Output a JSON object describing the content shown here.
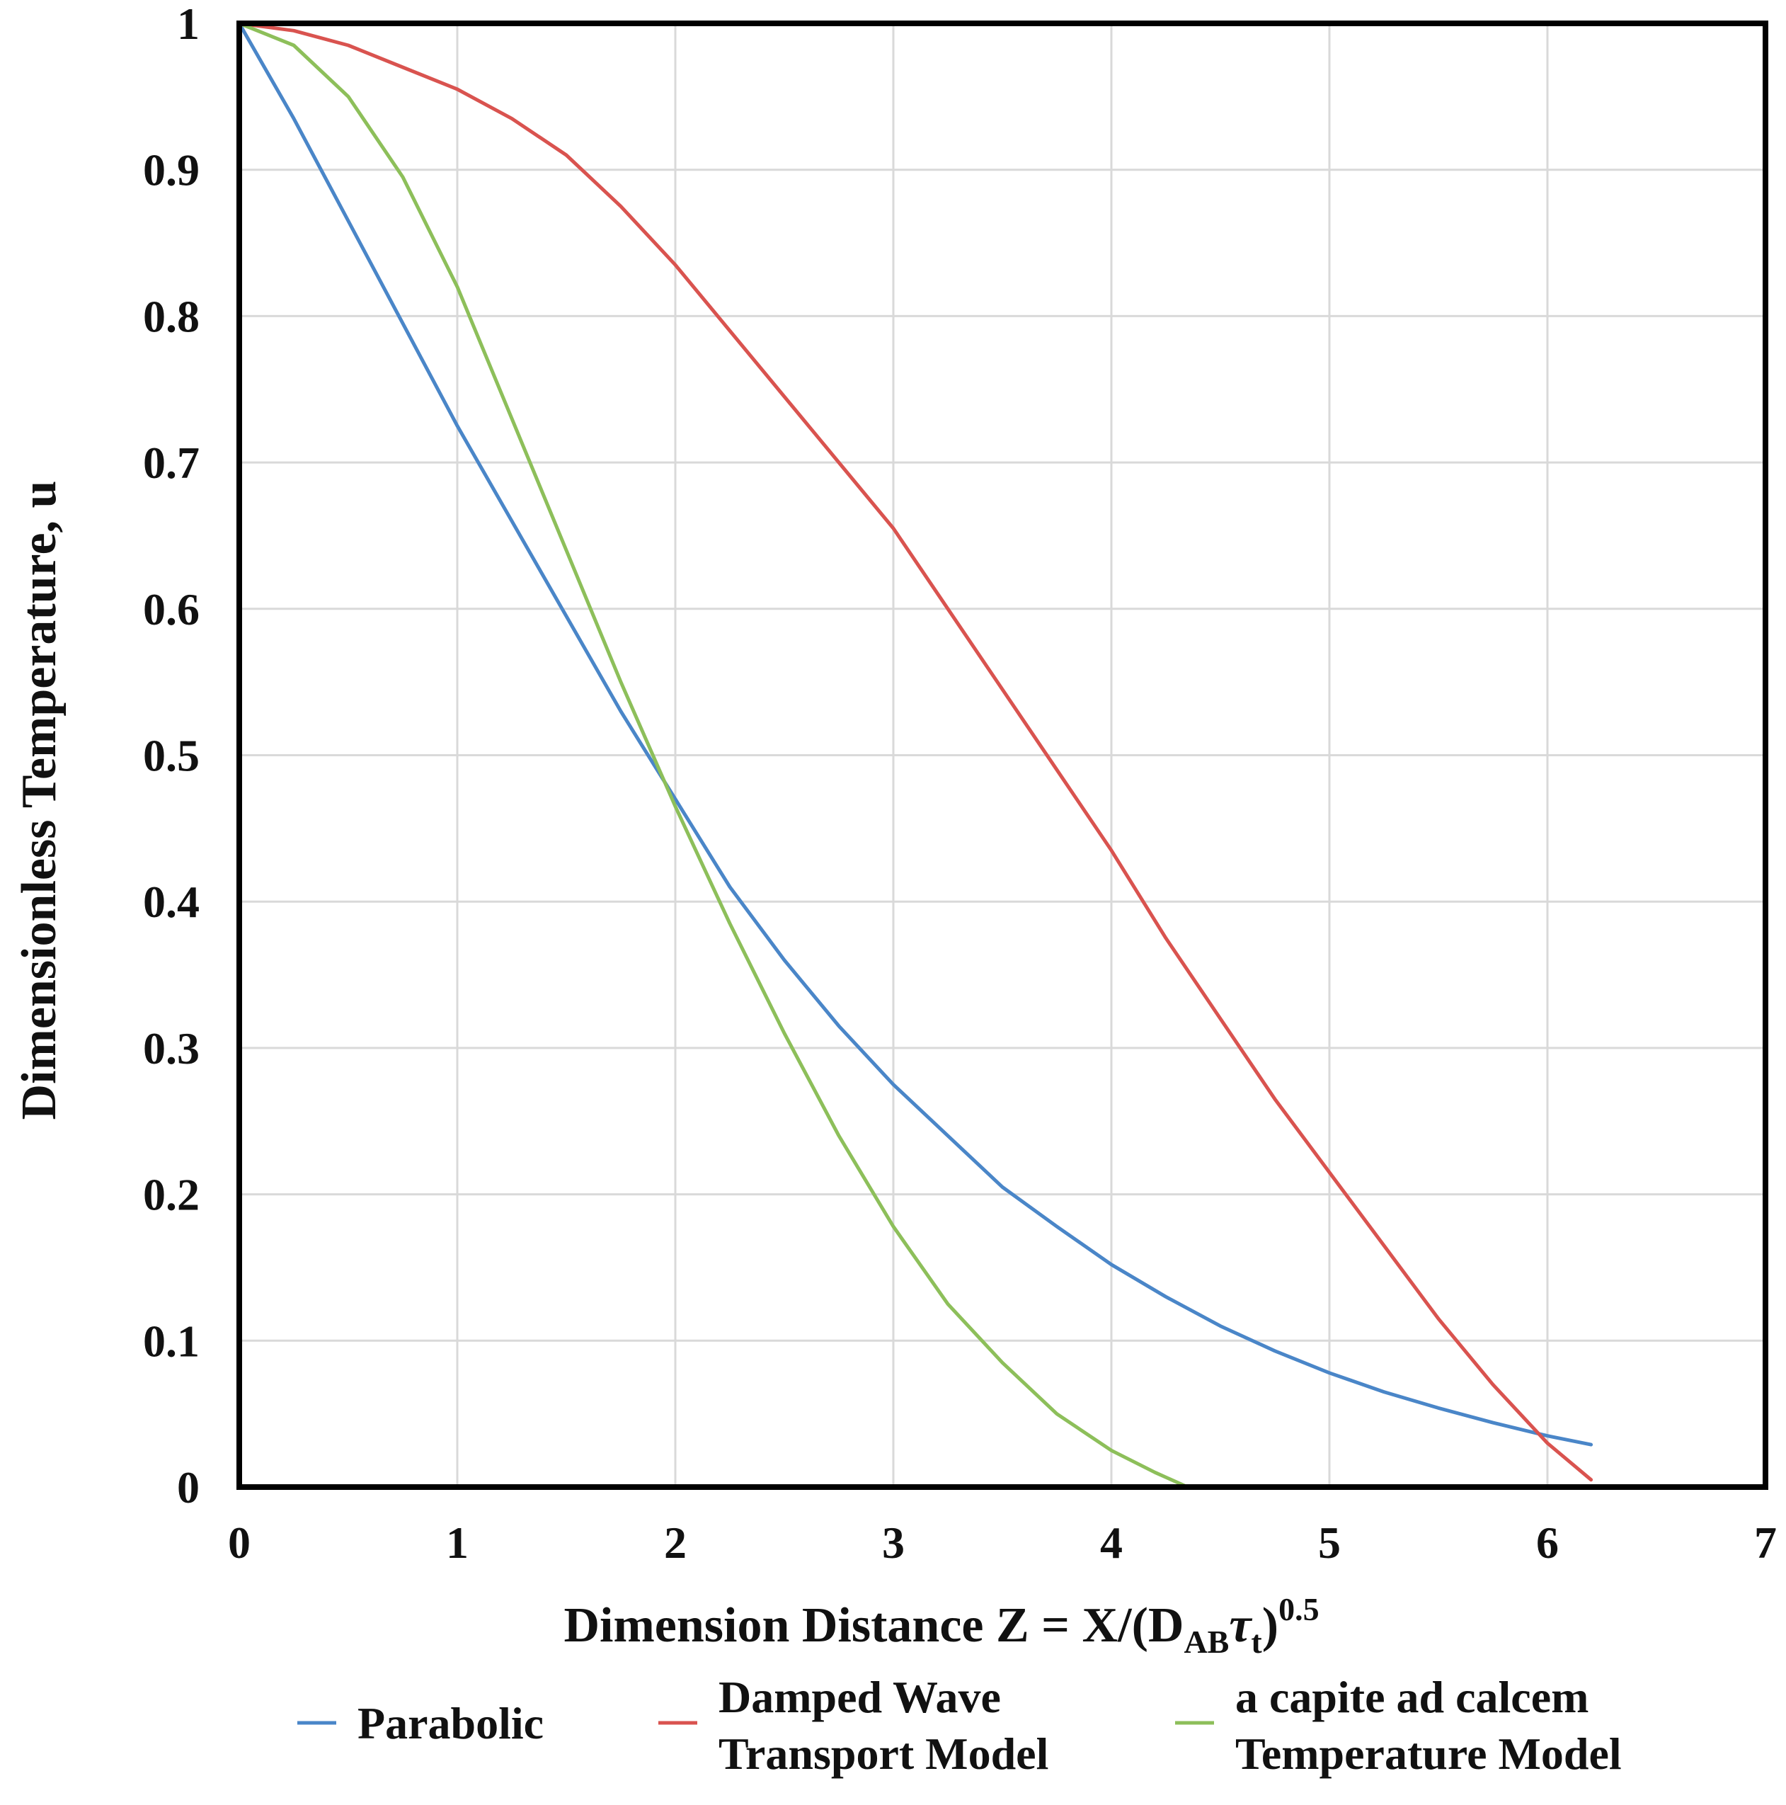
{
  "chart_data": {
    "type": "line",
    "title": "",
    "xlabel": {
      "prefix": "Dimension Distance Z = X/(D",
      "sub1": "AB",
      "tau": "τ",
      "sub2": "t",
      "close": ")",
      "sup": "0.5"
    },
    "ylabel": "Dimensionless Temperature, u",
    "xlim": [
      0,
      7
    ],
    "ylim": [
      0,
      1
    ],
    "xticks": [
      "0",
      "1",
      "2",
      "3",
      "4",
      "5",
      "6",
      "7"
    ],
    "yticks": [
      "0",
      "0.1",
      "0.2",
      "0.3",
      "0.4",
      "0.5",
      "0.6",
      "0.7",
      "0.8",
      "0.9",
      "1"
    ],
    "grid": true,
    "legend_position": "bottom",
    "series": [
      {
        "name": "Parabolic",
        "legend_lines": [
          "Parabolic"
        ],
        "color": "#4a86c8",
        "x": [
          0,
          0.25,
          0.5,
          0.75,
          1.0,
          1.25,
          1.5,
          1.75,
          2.0,
          2.25,
          2.5,
          2.75,
          3.0,
          3.25,
          3.5,
          3.75,
          4.0,
          4.25,
          4.5,
          4.75,
          5.0,
          5.25,
          5.5,
          5.75,
          6.0,
          6.2
        ],
        "y": [
          1.0,
          0.935,
          0.865,
          0.795,
          0.725,
          0.66,
          0.595,
          0.53,
          0.47,
          0.41,
          0.36,
          0.315,
          0.275,
          0.24,
          0.205,
          0.178,
          0.152,
          0.13,
          0.11,
          0.093,
          0.078,
          0.065,
          0.054,
          0.044,
          0.035,
          0.029
        ]
      },
      {
        "name": "Damped Wave Transport Model",
        "legend_lines": [
          "Damped Wave",
          "Transport Model"
        ],
        "color": "#d9534f",
        "x": [
          0,
          0.25,
          0.5,
          0.75,
          1.0,
          1.25,
          1.5,
          1.75,
          2.0,
          2.25,
          2.5,
          2.75,
          3.0,
          3.25,
          3.5,
          3.75,
          4.0,
          4.25,
          4.5,
          4.75,
          5.0,
          5.25,
          5.5,
          5.75,
          6.0,
          6.2
        ],
        "y": [
          1.0,
          0.995,
          0.985,
          0.97,
          0.955,
          0.935,
          0.91,
          0.875,
          0.835,
          0.79,
          0.745,
          0.7,
          0.655,
          0.6,
          0.545,
          0.49,
          0.435,
          0.375,
          0.32,
          0.265,
          0.215,
          0.165,
          0.115,
          0.07,
          0.03,
          0.005
        ]
      },
      {
        "name": "a capite ad calcem Temperature Model",
        "legend_lines": [
          "a capite ad calcem",
          "Temperature Model"
        ],
        "color": "#8dbf5a",
        "x": [
          0,
          0.25,
          0.5,
          0.75,
          1.0,
          1.25,
          1.5,
          1.75,
          2.0,
          2.25,
          2.5,
          2.75,
          3.0,
          3.25,
          3.5,
          3.75,
          4.0,
          4.2,
          4.35
        ],
        "y": [
          1.0,
          0.985,
          0.95,
          0.895,
          0.82,
          0.73,
          0.64,
          0.55,
          0.465,
          0.385,
          0.31,
          0.24,
          0.178,
          0.125,
          0.085,
          0.05,
          0.025,
          0.01,
          0.0
        ]
      }
    ]
  }
}
